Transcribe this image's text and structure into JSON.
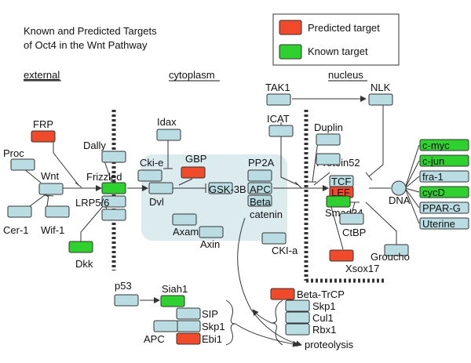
{
  "title": {
    "line1": "Known and Predicted Targets",
    "line2": "of Oct4 in the Wnt Pathway"
  },
  "legend": {
    "predicted_label": "Predicted target",
    "known_label": "Known target"
  },
  "colors": {
    "predicted": "#f04a2a",
    "known": "#2ed12e",
    "neutral": "#b9dde2",
    "compartment": "#dcebee"
  },
  "sections": {
    "external": "external",
    "cytoplasm": "cytoplasm",
    "nucleus": "nucleus"
  },
  "labels": {
    "frp": "FRP",
    "proc": "Proc",
    "wnt": "Wnt",
    "cer1": "Cer-1",
    "wif1": "Wif-1",
    "dally": "Dally",
    "frizzled": "Frizzled",
    "lrp56": "LRP5/6",
    "dkk": "Dkk",
    "idax": "Idax",
    "ckie": "Cki-e",
    "gbp": "GBP",
    "dvl": "Dvl",
    "gsk3b": "GSK-3B",
    "apc": "APC",
    "pp2a": "PP2A",
    "beta_catenin_1": "Beta",
    "beta_catenin_2": "catenin",
    "axam": "Axam",
    "axin": "Axin",
    "ckia": "CKI-a",
    "tak1": "TAK1",
    "nlk": "NLK",
    "icat": "ICAT",
    "duplin": "Duplin",
    "protein52": "Protein52",
    "tcf": "TCF",
    "lef": "LEF",
    "smad34": "Smad34",
    "dna": "DNA",
    "ctbp": "CtBP",
    "groucho": "Groucho",
    "xsox17": "Xsox17",
    "p53": "p53",
    "siah1": "Siah1",
    "sip": "SIP",
    "skp1_a": "Skp1",
    "apc2": "APC",
    "ebi1": "Ebi1",
    "beta_trcp": "Beta-TrCP",
    "skp1_b": "Skp1",
    "cul1": "Cul1",
    "rbx1": "Rbx1",
    "proteolysis": "proteolysis"
  },
  "targets": [
    {
      "label": "c-myc",
      "status": "known"
    },
    {
      "label": "c-jun",
      "status": "known"
    },
    {
      "label": "fra-1",
      "status": "neutral"
    },
    {
      "label": "cycD",
      "status": "known"
    },
    {
      "label": "PPAR-G",
      "status": "neutral"
    },
    {
      "label": "Uterine",
      "status": "neutral"
    }
  ]
}
